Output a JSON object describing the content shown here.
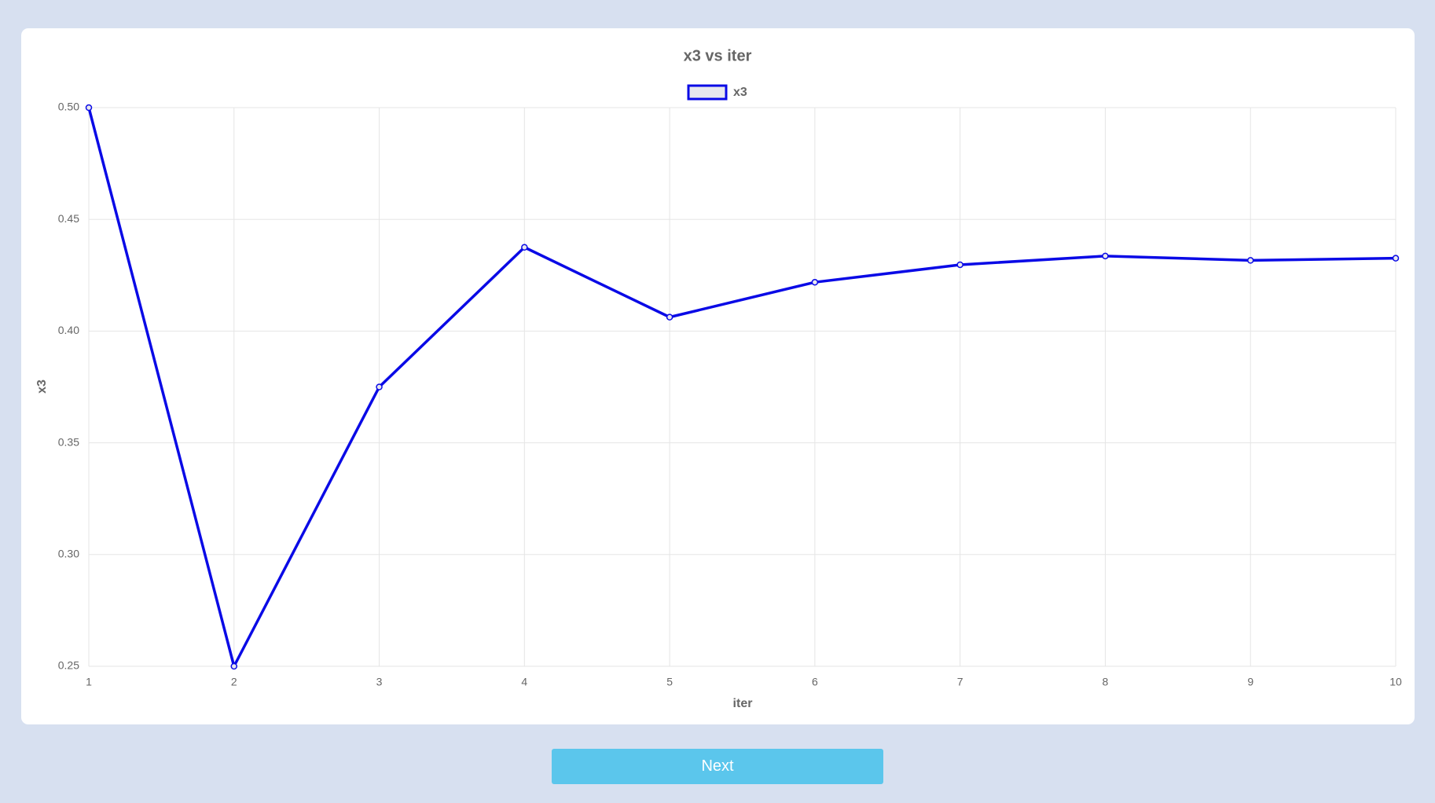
{
  "chart_data": {
    "type": "line",
    "title": "x3 vs iter",
    "x_label": "iter",
    "y_label": "x3",
    "x": [
      1,
      2,
      3,
      4,
      5,
      6,
      7,
      8,
      9,
      10
    ],
    "series": [
      {
        "name": "x3",
        "color": "#0a0ae6",
        "values": [
          0.5,
          0.25,
          0.375,
          0.4375,
          0.40625,
          0.421875,
          0.4296875,
          0.43359375,
          0.431640625,
          0.4326171875
        ]
      }
    ],
    "xlim": [
      1,
      10
    ],
    "xticks": [
      1,
      2,
      3,
      4,
      5,
      6,
      7,
      8,
      9,
      10
    ],
    "ylim": [
      0.25,
      0.5
    ],
    "yticks": [
      {
        "value": 0.25,
        "label": "0.25"
      },
      {
        "value": 0.3,
        "label": "0.30"
      },
      {
        "value": 0.35,
        "label": "0.35"
      },
      {
        "value": 0.4,
        "label": "0.40"
      },
      {
        "value": 0.45,
        "label": "0.45"
      },
      {
        "value": 0.5,
        "label": "0.50"
      }
    ],
    "grid": true,
    "legend": "top"
  },
  "button": {
    "label": "Next"
  }
}
